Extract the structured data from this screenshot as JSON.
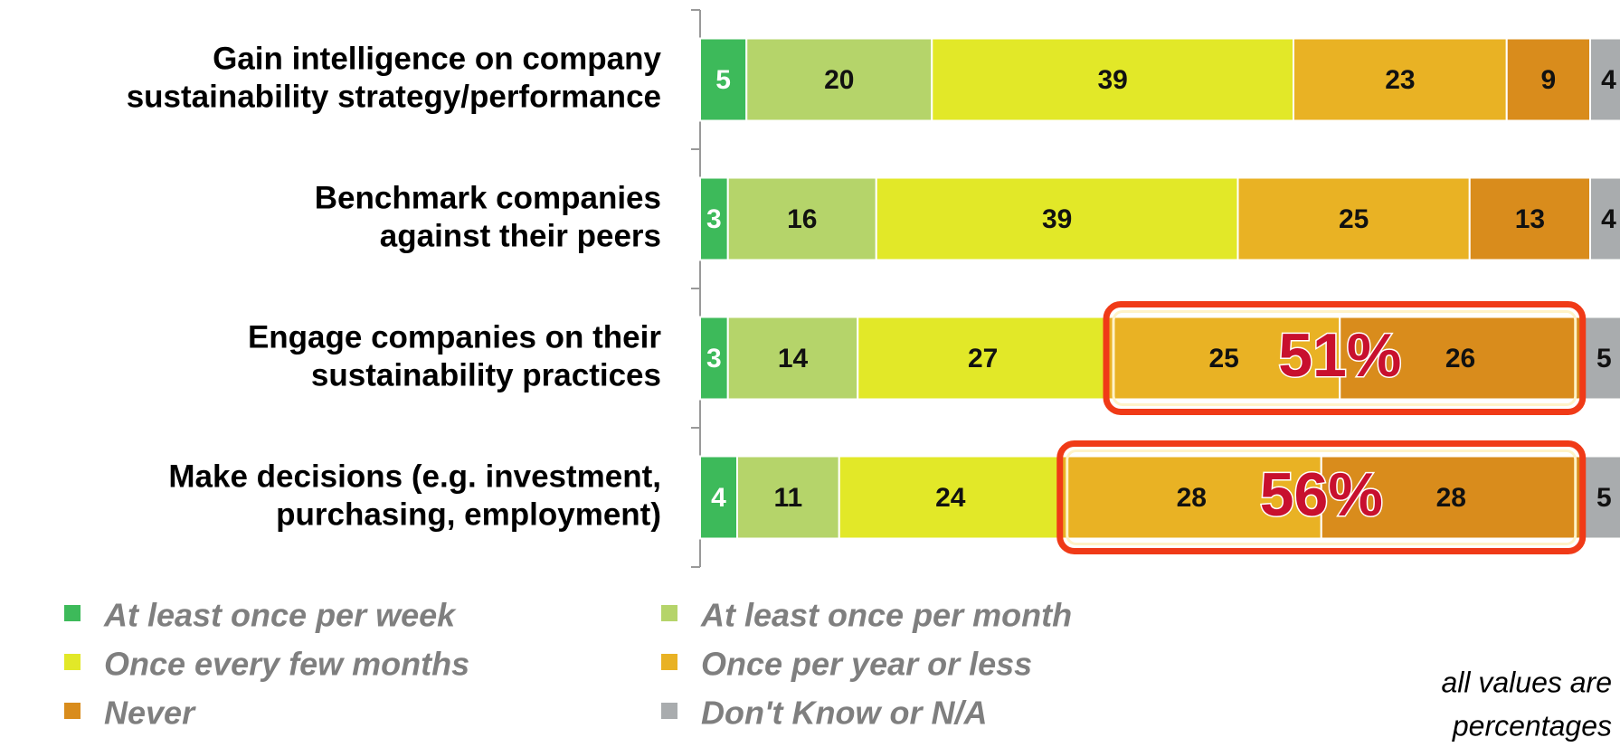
{
  "chart_data": {
    "type": "stacked-bar-horizontal",
    "categories": [
      [
        "Gain intelligence on company",
        "sustainability strategy/performance"
      ],
      [
        "Benchmark companies",
        "against their peers"
      ],
      [
        "Engage companies on their",
        "sustainability practices"
      ],
      [
        "Make decisions (e.g. investment,",
        "purchasing, employment)"
      ]
    ],
    "series": [
      {
        "name": "At least once per week",
        "color": "#3dba5a",
        "values": [
          5,
          3,
          3,
          4
        ]
      },
      {
        "name": "At least once per month",
        "color": "#b5d46a",
        "values": [
          20,
          16,
          14,
          11
        ]
      },
      {
        "name": "Once every few months",
        "color": "#e2e828",
        "values": [
          39,
          39,
          27,
          24
        ]
      },
      {
        "name": "Once per year or less",
        "color": "#e9b224",
        "values": [
          23,
          25,
          25,
          28
        ]
      },
      {
        "name": "Never",
        "color": "#d98c1c",
        "values": [
          9,
          13,
          26,
          28
        ]
      },
      {
        "name": "Don't Know or N/A",
        "color": "#a9acae",
        "values": [
          4,
          4,
          5,
          5
        ]
      }
    ],
    "annotations": [
      "51%",
      "56%"
    ],
    "note": [
      "all values are",
      "percentages"
    ]
  }
}
